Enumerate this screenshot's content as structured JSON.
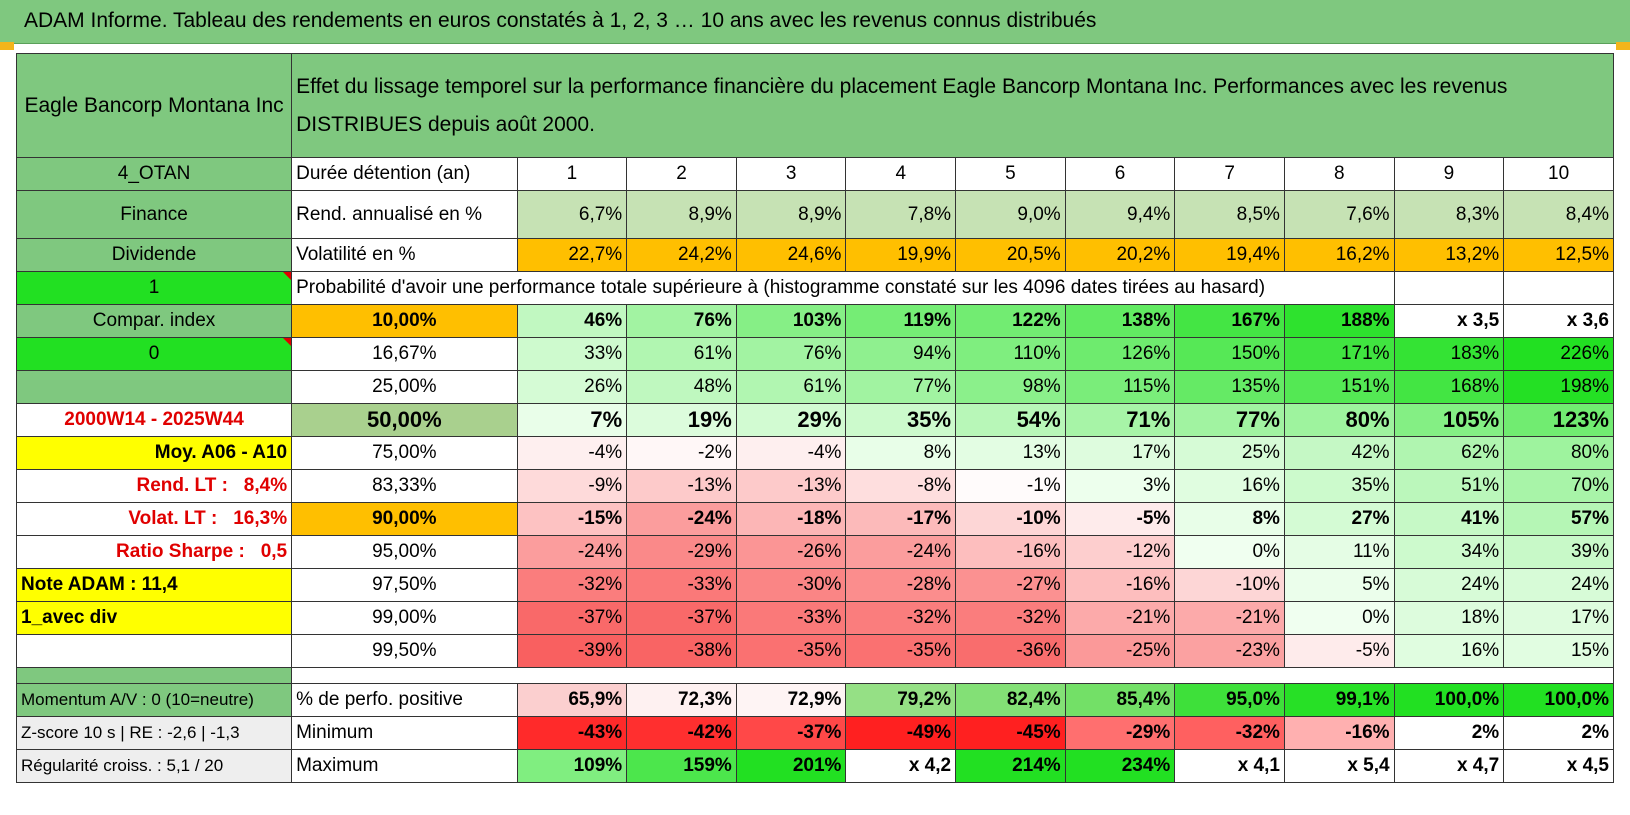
{
  "banner": {
    "title": "ADAM Informe. Tableau des rendements en euros constatés à 1, 2, 3 … 10 ans avec les revenus connus distribués"
  },
  "header": {
    "company": "Eagle Bancorp Montana Inc",
    "description": "Effet du lissage temporel sur la performance financière du placement Eagle Bancorp Montana Inc. Performances avec les revenus DISTRIBUES depuis août 2000."
  },
  "side": {
    "code": "4_OTAN",
    "sector": "Finance",
    "type": "Dividende",
    "flag1": "1",
    "compar": "Compar. index",
    "flag0": "0",
    "period": "2000W14 - 2025W44",
    "moy": "Moy. A06 - A10",
    "rend_lt_label": "Rend. LT :",
    "rend_lt_value": "8,4%",
    "volat_lt_label": "Volat. LT :",
    "volat_lt_value": "16,3%",
    "sharpe_label": "Ratio Sharpe :",
    "sharpe_value": "0,5",
    "note": "Note ADAM : 11,4",
    "avec_div": "1_avec div"
  },
  "rows": {
    "duree": {
      "label": "Durée détention (an)",
      "values": [
        "1",
        "2",
        "3",
        "4",
        "5",
        "6",
        "7",
        "8",
        "9",
        "10"
      ]
    },
    "rend": {
      "label": "Rend. annualisé en %",
      "values": [
        "6,7%",
        "8,9%",
        "8,9%",
        "7,8%",
        "9,0%",
        "9,4%",
        "8,5%",
        "7,6%",
        "8,3%",
        "8,4%"
      ]
    },
    "vol": {
      "label": "Volatilité en %",
      "values": [
        "22,7%",
        "24,2%",
        "24,6%",
        "19,9%",
        "20,5%",
        "20,2%",
        "19,4%",
        "16,2%",
        "13,2%",
        "12,5%"
      ]
    },
    "proba_title": "Probabilité d'avoir une performance totale supérieure à (histogramme constaté sur les 4096 dates tirées au hasard)"
  },
  "quantiles": [
    {
      "p": "10,00%",
      "values": [
        "46%",
        "76%",
        "103%",
        "119%",
        "122%",
        "138%",
        "167%",
        "188%",
        "x 3,5",
        "x 3,6"
      ]
    },
    {
      "p": "16,67%",
      "values": [
        "33%",
        "61%",
        "76%",
        "94%",
        "110%",
        "126%",
        "150%",
        "171%",
        "183%",
        "226%"
      ]
    },
    {
      "p": "25,00%",
      "values": [
        "26%",
        "48%",
        "61%",
        "77%",
        "98%",
        "115%",
        "135%",
        "151%",
        "168%",
        "198%"
      ]
    },
    {
      "p": "50,00%",
      "values": [
        "7%",
        "19%",
        "29%",
        "35%",
        "54%",
        "71%",
        "77%",
        "80%",
        "105%",
        "123%"
      ]
    },
    {
      "p": "75,00%",
      "values": [
        "-4%",
        "-2%",
        "-4%",
        "8%",
        "13%",
        "17%",
        "25%",
        "42%",
        "62%",
        "80%"
      ]
    },
    {
      "p": "83,33%",
      "values": [
        "-9%",
        "-13%",
        "-13%",
        "-8%",
        "-1%",
        "3%",
        "16%",
        "35%",
        "51%",
        "70%"
      ]
    },
    {
      "p": "90,00%",
      "values": [
        "-15%",
        "-24%",
        "-18%",
        "-17%",
        "-10%",
        "-5%",
        "8%",
        "27%",
        "41%",
        "57%"
      ]
    },
    {
      "p": "95,00%",
      "values": [
        "-24%",
        "-29%",
        "-26%",
        "-24%",
        "-16%",
        "-12%",
        "0%",
        "11%",
        "34%",
        "39%"
      ]
    },
    {
      "p": "97,50%",
      "values": [
        "-32%",
        "-33%",
        "-30%",
        "-28%",
        "-27%",
        "-16%",
        "-10%",
        "5%",
        "24%",
        "24%"
      ]
    },
    {
      "p": "99,00%",
      "values": [
        "-37%",
        "-37%",
        "-33%",
        "-32%",
        "-32%",
        "-21%",
        "-21%",
        "0%",
        "18%",
        "17%"
      ]
    },
    {
      "p": "99,50%",
      "values": [
        "-39%",
        "-38%",
        "-35%",
        "-35%",
        "-36%",
        "-25%",
        "-23%",
        "-5%",
        "16%",
        "15%"
      ]
    }
  ],
  "bottom": [
    {
      "side": "Momentum A/V : 0 (10=neutre)",
      "label": "% de perfo. positive",
      "values": [
        "65,9%",
        "72,3%",
        "72,9%",
        "79,2%",
        "82,4%",
        "85,4%",
        "95,0%",
        "99,1%",
        "100,0%",
        "100,0%"
      ]
    },
    {
      "side": "Z-score 10 s | RE : -2,6 | -1,3",
      "label": "Minimum",
      "values": [
        "-43%",
        "-42%",
        "-37%",
        "-49%",
        "-45%",
        "-29%",
        "-32%",
        "-16%",
        "2%",
        "2%"
      ]
    },
    {
      "side": "Régularité croiss. : 5,1 / 20",
      "label": "Maximum",
      "values": [
        "109%",
        "159%",
        "201%",
        "x 4,2",
        "214%",
        "234%",
        "x 4,1",
        "x 5,4",
        "x 4,7",
        "x 4,5"
      ]
    }
  ],
  "colors": {
    "header_green": "#7fc87f",
    "orange": "#ffbf00",
    "yellow": "#ffff00",
    "bright_green": "#22e022",
    "red_text": "#e00000"
  }
}
